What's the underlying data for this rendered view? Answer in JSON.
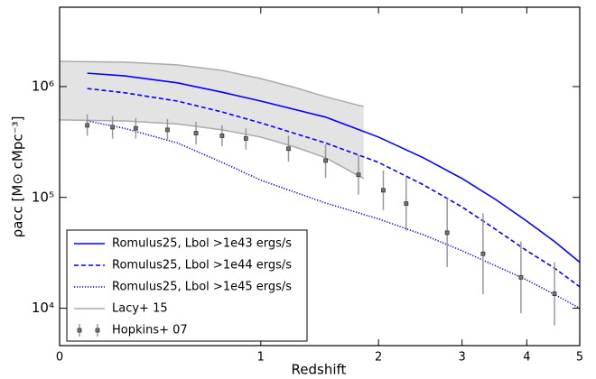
{
  "chart_data": {
    "type": "line",
    "x_label": "Redshift",
    "y_label": "ρacc [M⊙ cMpc⁻³]",
    "xscale": "log1p",
    "yscale": "log",
    "xlim": [
      0,
      5
    ],
    "xticks": [
      0,
      1,
      2,
      3,
      4,
      5
    ],
    "ylim": [
      4600,
      5200000
    ],
    "yticks": [
      {
        "value": 10000,
        "label": "10⁴"
      },
      {
        "value": 100000,
        "label": "10⁵"
      },
      {
        "value": 1000000,
        "label": "10⁶"
      }
    ],
    "legend": "lower left",
    "series": [
      {
        "name": "Romulus25, Lbol >1e43 ergs/s",
        "color": "#0000ff",
        "style": "solid",
        "x": [
          0.1,
          0.25,
          0.5,
          0.75,
          1,
          1.5,
          2,
          2.5,
          3,
          3.5,
          4,
          4.5,
          5
        ],
        "values": [
          1320000,
          1250000,
          1080000,
          890000,
          740000,
          530000,
          350000,
          228000,
          148000,
          95000,
          61000,
          40000,
          26000
        ]
      },
      {
        "name": "Romulus25, Lbol >1e44 ergs/s",
        "color": "#0000ff",
        "style": "dashed",
        "x": [
          0.1,
          0.25,
          0.5,
          0.75,
          1,
          1.5,
          2,
          2.5,
          3,
          3.5,
          4,
          4.5,
          5
        ],
        "values": [
          960000,
          880000,
          740000,
          590000,
          470000,
          310000,
          207000,
          130000,
          82000,
          51000,
          33000,
          23000,
          15600
        ]
      },
      {
        "name": "Romulus25, Lbol >1e45 ergs/s",
        "color": "#0000ff",
        "style": "dotted",
        "x": [
          0.1,
          0.25,
          0.5,
          0.75,
          1,
          1.5,
          2,
          2.5,
          3,
          3.5,
          4,
          4.5,
          5
        ],
        "values": [
          490000,
          420000,
          310000,
          207000,
          143000,
          89000,
          64000,
          46000,
          33000,
          24000,
          18000,
          13300,
          10000
        ]
      }
    ],
    "band": {
      "name": "Lacy+ 15",
      "color": "#aaaaaa",
      "x": [
        0,
        0.25,
        0.5,
        0.75,
        1,
        1.25,
        1.5,
        1.85
      ],
      "upper": [
        1690000,
        1660000,
        1570000,
        1400000,
        1180000,
        980000,
        810000,
        660000
      ],
      "lower": [
        500000,
        490000,
        460000,
        407000,
        350000,
        285000,
        228000,
        148000
      ]
    },
    "points": {
      "name": "Hopkins+ 07",
      "color": "#333333",
      "bar_color": "#999999",
      "x": [
        0.1,
        0.2,
        0.3,
        0.45,
        0.6,
        0.75,
        0.9,
        1.2,
        1.5,
        1.8,
        2.05,
        2.3,
        2.8,
        3.3,
        3.9,
        4.5
      ],
      "values": [
        447000,
        430000,
        420000,
        407000,
        380000,
        360000,
        340000,
        275000,
        215000,
        160000,
        116000,
        88000,
        48000,
        31000,
        19000,
        13500
      ],
      "lower": [
        360000,
        340000,
        340000,
        330000,
        300000,
        290000,
        270000,
        210000,
        150000,
        106000,
        77000,
        50000,
        23500,
        13400,
        9000,
        7000
      ],
      "upper": [
        560000,
        540000,
        520000,
        510000,
        480000,
        450000,
        420000,
        360000,
        300000,
        240000,
        175000,
        154000,
        98000,
        72000,
        40000,
        26000
      ]
    }
  }
}
